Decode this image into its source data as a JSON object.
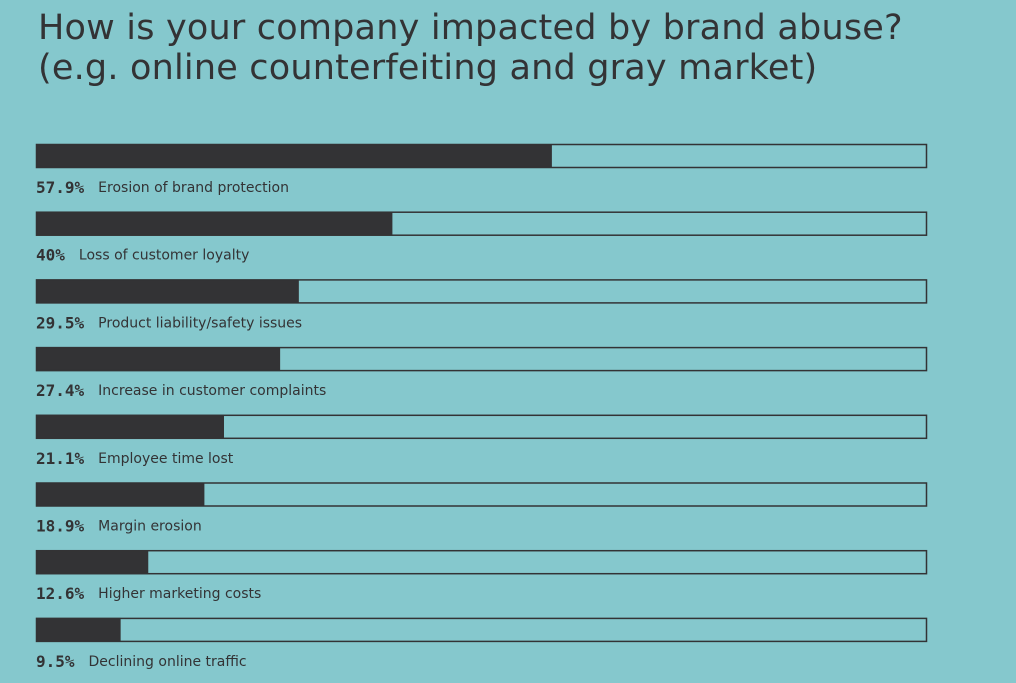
{
  "title_line1": "How is your company impacted by brand abuse?",
  "title_line2": "(e.g. online counterfeiting and gray market)",
  "colors": {
    "background": "#85c8cd",
    "bar_fill": "#333335",
    "bar_outline": "#333335",
    "text": "#333335"
  },
  "chart_data": {
    "type": "bar",
    "orientation": "horizontal",
    "xlim": [
      0,
      100
    ],
    "grid": false,
    "categories": [
      "Erosion of brand protection",
      "Loss of customer loyalty",
      "Product liability/safety issues",
      "Increase in customer complaints",
      "Employee time lost",
      "Margin erosion",
      "Higher marketing costs",
      "Declining online traffic"
    ],
    "values": [
      57.9,
      40,
      29.5,
      27.4,
      21.1,
      18.9,
      12.6,
      9.5
    ],
    "value_labels": [
      "57.9%",
      "40%",
      "29.5%",
      "27.4%",
      "21.1%",
      "18.9%",
      "12.6%",
      "9.5%"
    ]
  }
}
